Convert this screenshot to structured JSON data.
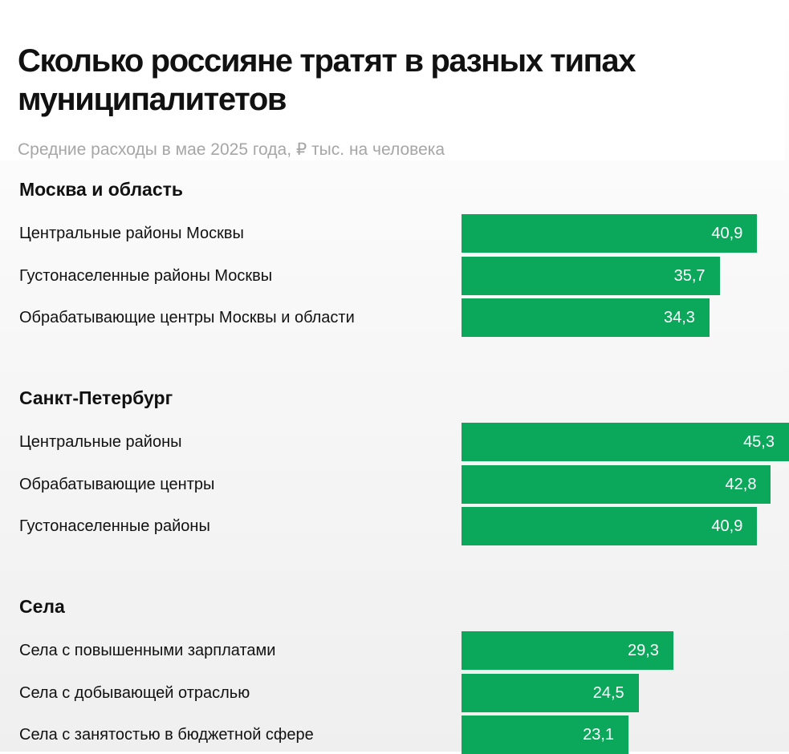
{
  "header": {
    "title": "Сколько россияне тратят в разных типах муниципалитетов",
    "subtitle": "Средние расходы в мае 2025 года, ₽ тыс. на человека"
  },
  "colors": {
    "bar": "#0ba85b",
    "bar_text": "#ffffff",
    "subtitle": "#a6a6a6"
  },
  "chart_data": {
    "type": "bar",
    "orientation": "horizontal",
    "title": "Сколько россияне тратят в разных типах муниципалитетов",
    "subtitle": "Средние расходы в мае 2025 года, ₽ тыс. на человека",
    "xlim": [
      0,
      45.3
    ],
    "grid": false,
    "groups": [
      {
        "name": "Москва и область",
        "items": [
          {
            "label": "Центральные районы Москвы",
            "value": 40.9,
            "display": "40,9"
          },
          {
            "label": "Густонаселенные районы Москвы",
            "value": 35.7,
            "display": "35,7"
          },
          {
            "label": "Обрабатывающие центры Москвы и области",
            "value": 34.3,
            "display": "34,3"
          }
        ]
      },
      {
        "name": "Санкт-Петербург",
        "items": [
          {
            "label": "Центральные районы",
            "value": 45.3,
            "display": "45,3"
          },
          {
            "label": "Обрабатывающие центры",
            "value": 42.8,
            "display": "42,8"
          },
          {
            "label": "Густонаселенные районы",
            "value": 40.9,
            "display": "40,9"
          }
        ]
      },
      {
        "name": "Села",
        "items": [
          {
            "label": "Села с повышенными зарплатами",
            "value": 29.3,
            "display": "29,3"
          },
          {
            "label": "Села с добывающей отраслью",
            "value": 24.5,
            "display": "24,5"
          },
          {
            "label": "Села с занятостью в бюджетной сфере",
            "value": 23.1,
            "display": "23,1"
          }
        ]
      }
    ]
  }
}
